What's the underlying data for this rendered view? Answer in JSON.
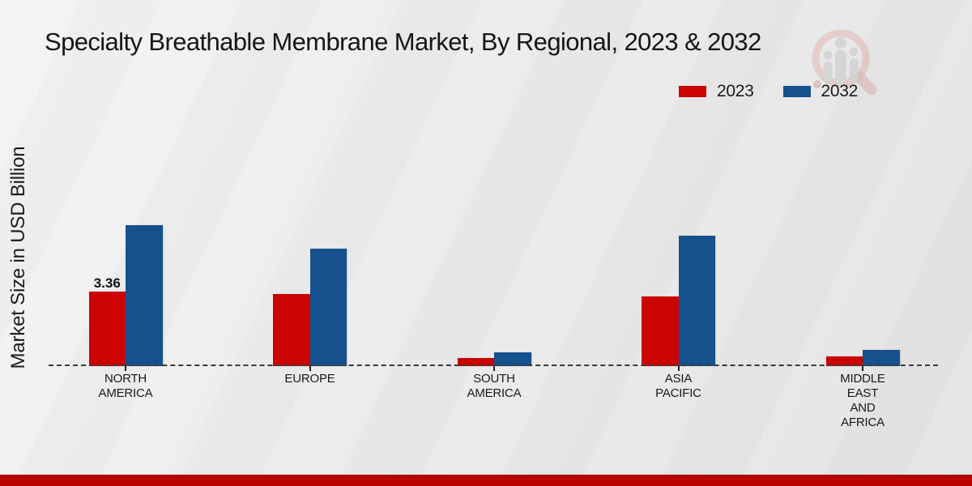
{
  "title": "Specialty Breathable Membrane Market, By Regional, 2023 & 2032",
  "y_axis_label": "Market Size in USD Billion",
  "legend": [
    {
      "label": "2023",
      "color": "#cb0401"
    },
    {
      "label": "2032",
      "color": "#15518c"
    }
  ],
  "colors": {
    "bar_2023": "#cb0401",
    "bar_2032": "#15518c",
    "bottom_strip": "#bb0300",
    "axis_dash": "#3c3c3c",
    "background": "#ebebeb"
  },
  "chart_data": {
    "type": "bar",
    "title": "Specialty Breathable Membrane Market, By Regional, 2023 & 2032",
    "xlabel": "",
    "ylabel": "Market Size in USD Billion",
    "categories": [
      "NORTH AMERICA",
      "EUROPE",
      "SOUTH AMERICA",
      "ASIA PACIFIC",
      "MIDDLE EAST AND AFRICA"
    ],
    "category_lines": [
      [
        "NORTH",
        "AMERICA"
      ],
      [
        "EUROPE"
      ],
      [
        "SOUTH",
        "AMERICA"
      ],
      [
        "ASIA",
        "PACIFIC"
      ],
      [
        "MIDDLE",
        "EAST",
        "AND",
        "AFRICA"
      ]
    ],
    "series": [
      {
        "name": "2023",
        "color": "#cb0401",
        "values": [
          3.36,
          3.25,
          0.36,
          3.14,
          0.43
        ]
      },
      {
        "name": "2032",
        "color": "#15518c",
        "values": [
          6.36,
          5.3,
          0.61,
          5.89,
          0.72
        ]
      }
    ],
    "data_labels": [
      {
        "series": "2023",
        "category": "NORTH AMERICA",
        "text": "3.36"
      }
    ],
    "ylim": [
      0,
      7
    ],
    "grid": false,
    "axis_style": "dashed-zero-line-only",
    "legend_position": "top-right"
  }
}
